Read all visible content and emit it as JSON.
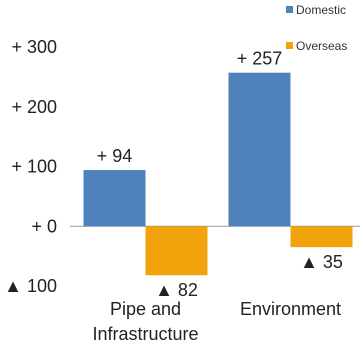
{
  "chart_data": {
    "type": "bar",
    "categories": [
      "Pipe and Infrastructure",
      "Environment"
    ],
    "category_lines": [
      [
        "Pipe and",
        "Infrastructure"
      ],
      [
        "Environment"
      ]
    ],
    "series": [
      {
        "name": "Domestic",
        "values": [
          94,
          257
        ],
        "color": "#4f81bd",
        "labels": [
          "+ 94",
          "+ 257"
        ]
      },
      {
        "name": "Overseas",
        "values": [
          -82,
          -35
        ],
        "color": "#f0a30a",
        "labels": [
          "▲ 82",
          "▲ 35"
        ]
      }
    ],
    "ylim": [
      -100,
      300
    ],
    "yticks": [
      300,
      200,
      100,
      0,
      -100
    ],
    "ytick_labels": [
      "+ 300",
      "+ 200",
      "+ 100",
      "+ 0",
      "▲ 100"
    ],
    "grid": false,
    "legend_position": "top-right",
    "title": "",
    "xlabel": "",
    "ylabel": ""
  }
}
